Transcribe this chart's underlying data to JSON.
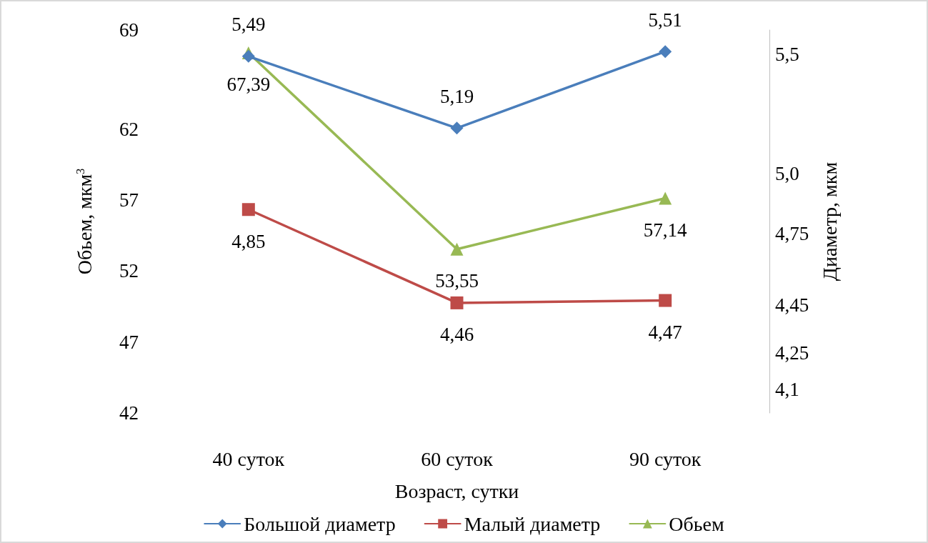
{
  "chart_data": {
    "type": "line",
    "xlabel": "Возраст, сутки",
    "ylabel": "Обьем, мкм$^{3}$",
    "y2label": "Диаметр, мкм",
    "categories": [
      "40 суток",
      "60 суток",
      "90 суток"
    ],
    "series": [
      {
        "name": "Большой диаметр",
        "color": "#4a7ebb",
        "marker": "diamond",
        "axis": "y2",
        "values": [
          5.49,
          5.19,
          5.51
        ],
        "value_labels": [
          "5,49",
          "5,19",
          "5,51"
        ]
      },
      {
        "name": "Малый диаметр",
        "color": "#be4b48",
        "marker": "square",
        "axis": "y2",
        "values": [
          4.85,
          4.46,
          4.47
        ],
        "value_labels": [
          "4,85",
          "4,46",
          "4,47"
        ]
      },
      {
        "name": "Обьем",
        "color": "#98b954",
        "marker": "triangle",
        "values": [
          67.39,
          53.55,
          57.14
        ],
        "value_labels": [
          "67,39",
          "53,55",
          "57,14"
        ]
      }
    ],
    "ylim": [
      42,
      69
    ],
    "yticks": [
      42,
      47,
      52,
      57,
      62,
      69
    ],
    "y2lim": [
      4,
      5.6
    ],
    "y2ticks": [
      {
        "value": 4.1,
        "label": "4,1"
      },
      {
        "value": 4.25,
        "label": "4,25"
      },
      {
        "value": 4.45,
        "label": "4,45"
      },
      {
        "value": 4.75,
        "label": "4,75"
      },
      {
        "value": 5.0,
        "label": "5,0"
      },
      {
        "value": 5.5,
        "label": "5,5"
      }
    ],
    "grid": false,
    "legend": "bottom",
    "line_style": "solid"
  }
}
